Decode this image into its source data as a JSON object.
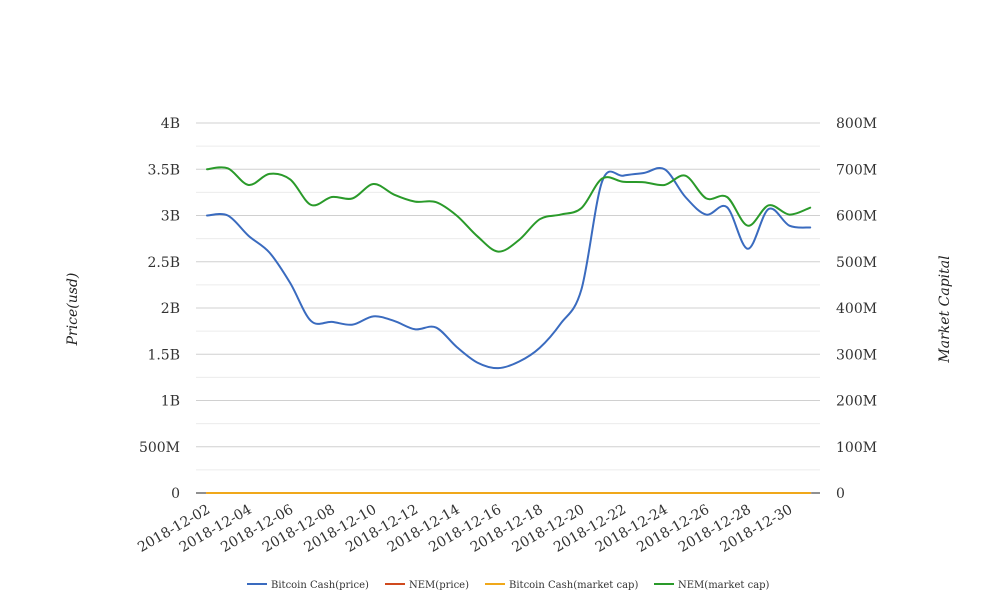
{
  "chart_data": {
    "type": "line",
    "x": [
      "2018-12-02",
      "2018-12-03",
      "2018-12-04",
      "2018-12-05",
      "2018-12-06",
      "2018-12-07",
      "2018-12-08",
      "2018-12-09",
      "2018-12-10",
      "2018-12-11",
      "2018-12-12",
      "2018-12-13",
      "2018-12-14",
      "2018-12-15",
      "2018-12-16",
      "2018-12-17",
      "2018-12-18",
      "2018-12-19",
      "2018-12-20",
      "2018-12-21",
      "2018-12-22",
      "2018-12-23",
      "2018-12-24",
      "2018-12-25",
      "2018-12-26",
      "2018-12-27",
      "2018-12-28",
      "2018-12-29",
      "2018-12-30",
      "2018-12-31"
    ],
    "x_tick_labels": [
      "2018-12-02",
      "2018-12-04",
      "2018-12-06",
      "2018-12-08",
      "2018-12-10",
      "2018-12-12",
      "2018-12-14",
      "2018-12-16",
      "2018-12-18",
      "2018-12-20",
      "2018-12-22",
      "2018-12-24",
      "2018-12-26",
      "2018-12-28",
      "2018-12-30"
    ],
    "left_axis": {
      "title": "Price(usd)",
      "range": [
        0,
        4000000000
      ],
      "ticks": [
        0,
        500000000,
        1000000000,
        1500000000,
        2000000000,
        2500000000,
        3000000000,
        3500000000,
        4000000000
      ],
      "tick_labels": [
        "0",
        "500M",
        "1B",
        "1.5B",
        "2B",
        "2.5B",
        "3B",
        "3.5B",
        "4B"
      ]
    },
    "right_axis": {
      "title": "Market Capital",
      "range": [
        0,
        800000000
      ],
      "ticks": [
        0,
        100000000,
        200000000,
        300000000,
        400000000,
        500000000,
        600000000,
        700000000,
        800000000
      ],
      "tick_labels": [
        "0",
        "100M",
        "200M",
        "300M",
        "400M",
        "500M",
        "600M",
        "700M",
        "800M"
      ]
    },
    "grid": true,
    "legend_position": "bottom-center",
    "series": [
      {
        "name": "Bitcoin Cash(price)",
        "axis": "left",
        "color": "#3a6bbf",
        "values": [
          3000000000,
          3000000000,
          2780000000,
          2600000000,
          2270000000,
          1860000000,
          1850000000,
          1820000000,
          1910000000,
          1860000000,
          1770000000,
          1790000000,
          1580000000,
          1410000000,
          1350000000,
          1420000000,
          1570000000,
          1830000000,
          2200000000,
          3370000000,
          3430000000,
          3460000000,
          3500000000,
          3200000000,
          3010000000,
          3090000000,
          2640000000,
          3070000000,
          2890000000,
          2870000000
        ]
      },
      {
        "name": "NEM(price)",
        "axis": "left",
        "color": "#d04a1e",
        "values": [
          0.36,
          0.37,
          0.36,
          0.35,
          0.33,
          0.31,
          0.31,
          0.3,
          0.31,
          0.3,
          0.29,
          0.29,
          0.28,
          0.27,
          0.26,
          0.27,
          0.29,
          0.3,
          0.31,
          0.33,
          0.33,
          0.32,
          0.32,
          0.31,
          0.3,
          0.3,
          0.29,
          0.3,
          0.29,
          0.29
        ]
      },
      {
        "name": "Bitcoin Cash(market cap)",
        "axis": "right",
        "color": "#f0a81a",
        "values": [
          0,
          0,
          0,
          0,
          0,
          0,
          0,
          0,
          0,
          0,
          0,
          0,
          0,
          0,
          0,
          0,
          0,
          0,
          0,
          0,
          0,
          0,
          0,
          0,
          0,
          0,
          0,
          0,
          0,
          0
        ]
      },
      {
        "name": "NEM(market cap)",
        "axis": "right",
        "color": "#2a9a2a",
        "values": [
          700000000,
          702000000,
          666000000,
          690000000,
          678000000,
          623000000,
          640000000,
          637000000,
          668000000,
          645000000,
          630000000,
          629000000,
          600000000,
          555000000,
          522000000,
          547000000,
          592000000,
          602000000,
          616000000,
          680000000,
          673000000,
          672000000,
          666000000,
          686000000,
          637000000,
          640000000,
          578000000,
          622000000,
          602000000,
          617000000
        ]
      }
    ]
  }
}
